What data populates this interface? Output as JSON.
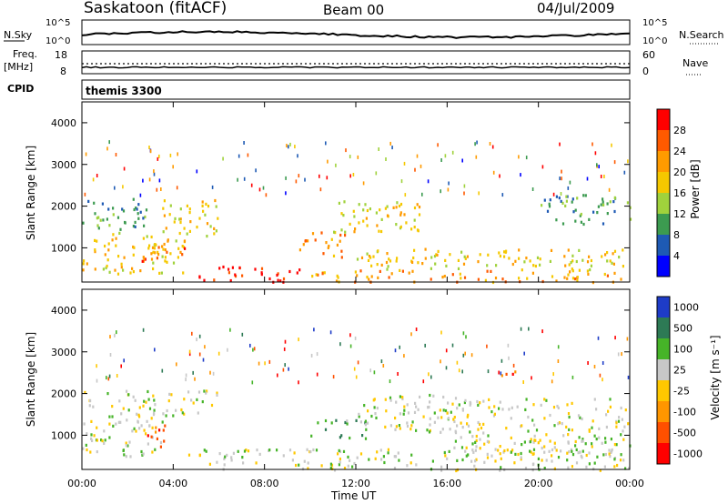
{
  "header": {
    "station": "Saskatoon (fitACF)",
    "beam": "Beam 00",
    "date": "04/Jul/2009"
  },
  "noise_panel": {
    "left_label": "N.Sky",
    "left_ticks": [
      "10^5",
      "10^0"
    ],
    "right_label": "N.Search",
    "right_ticks": [
      "10^5",
      "10^0"
    ]
  },
  "freq_panel": {
    "left_label_1": "Freq.",
    "left_label_2": "[MHz]",
    "left_ticks": [
      "18",
      "8"
    ],
    "right_label": "Nave",
    "right_ticks": [
      "60",
      "0"
    ]
  },
  "cpid_panel": {
    "label": "CPID",
    "value": "themis 3300"
  },
  "x_axis": {
    "label": "Time UT",
    "ticks": [
      "00:00",
      "04:00",
      "08:00",
      "12:00",
      "16:00",
      "20:00",
      "00:00"
    ]
  },
  "power_panel": {
    "ylabel": "Slant Range [km]",
    "yticks": [
      "4000",
      "3000",
      "2000",
      "1000"
    ],
    "colorbar_label": "Power [dB]",
    "colorbar_ticks": [
      "28",
      "24",
      "20",
      "16",
      "12",
      "8",
      "4"
    ],
    "colors": [
      "#ff0000",
      "#ff5a00",
      "#ff9b00",
      "#f5c800",
      "#a0d23c",
      "#3c9b50",
      "#1e5ab4",
      "#0000ff"
    ]
  },
  "velocity_panel": {
    "ylabel": "Slant Range [km]",
    "yticks": [
      "4000",
      "3000",
      "2000",
      "1000"
    ],
    "colorbar_label": "Velocity [m s⁻¹]",
    "colorbar_ticks": [
      "1000",
      "500",
      "100",
      "25",
      "-25",
      "-100",
      "-500",
      "-1000"
    ],
    "colors": [
      "#1e3cc8",
      "#2d7a55",
      "#46b428",
      "#c8c8c8",
      "#ffc800",
      "#ff9600",
      "#ff5000",
      "#ff0000"
    ]
  },
  "chart_data": {
    "type": "heatmap",
    "x_range_hours": [
      0,
      24
    ],
    "y_range_km": [
      180,
      4500
    ],
    "power_blobs": [
      {
        "t0": 0.0,
        "t1": 2.8,
        "r0": 1400,
        "r1": 2200,
        "level": 2
      },
      {
        "t0": 0.0,
        "t1": 4.5,
        "r0": 400,
        "r1": 1400,
        "level": 4
      },
      {
        "t0": 2.5,
        "t1": 4.5,
        "r0": 700,
        "r1": 1100,
        "level": 6
      },
      {
        "t0": 3.5,
        "t1": 6.0,
        "r0": 1300,
        "r1": 2200,
        "level": 4
      },
      {
        "t0": 5.0,
        "t1": 9.5,
        "r0": 200,
        "r1": 600,
        "level": 7
      },
      {
        "t0": 9.5,
        "t1": 11.5,
        "r0": 800,
        "r1": 1400,
        "level": 5
      },
      {
        "t0": 11.0,
        "t1": 15.0,
        "r0": 1400,
        "r1": 2200,
        "level": 4
      },
      {
        "t0": 12.0,
        "t1": 24.0,
        "r0": 500,
        "r1": 1000,
        "level": 4
      },
      {
        "t0": 10.0,
        "t1": 24.0,
        "r0": 200,
        "r1": 500,
        "level": 5
      },
      {
        "t0": 20.0,
        "t1": 24.0,
        "r0": 1600,
        "r1": 2300,
        "level": 2
      }
    ],
    "velocity_blobs": [
      {
        "t0": 0.0,
        "t1": 3.5,
        "r0": 500,
        "r1": 2100,
        "level": 3
      },
      {
        "t0": 2.8,
        "t1": 3.8,
        "r0": 700,
        "r1": 1300,
        "level": 6
      },
      {
        "t0": 3.5,
        "t1": 6.0,
        "r0": 1500,
        "r1": 2100,
        "level": 3
      },
      {
        "t0": 4.5,
        "t1": 24.0,
        "r0": 180,
        "r1": 700,
        "level": 3
      },
      {
        "t0": 10.0,
        "t1": 12.5,
        "r0": 900,
        "r1": 1400,
        "level": 2
      },
      {
        "t0": 12.0,
        "t1": 17.0,
        "r0": 1100,
        "r1": 2000,
        "level": 3
      },
      {
        "t0": 18.2,
        "t1": 19.0,
        "r0": 2400,
        "r1": 2700,
        "level": 6
      },
      {
        "t0": 16.0,
        "t1": 24.0,
        "r0": 500,
        "r1": 1900,
        "level": 3
      }
    ]
  }
}
